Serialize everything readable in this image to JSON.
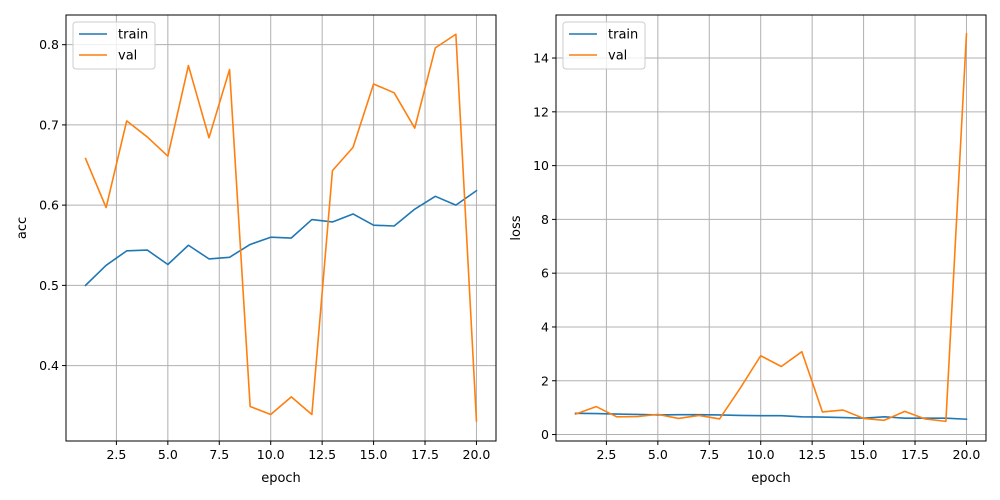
{
  "chart_data": [
    {
      "type": "line",
      "xlabel": "epoch",
      "ylabel": "acc",
      "x": [
        1,
        2,
        3,
        4,
        5,
        6,
        7,
        8,
        9,
        10,
        11,
        12,
        13,
        14,
        15,
        16,
        17,
        18,
        19,
        20
      ],
      "xlim": [
        0.05,
        20.95
      ],
      "ylim": [
        0.306,
        0.837
      ],
      "xticks": [
        2.5,
        5.0,
        7.5,
        10.0,
        12.5,
        15.0,
        17.5,
        20.0
      ],
      "xtick_labels": [
        "2.5",
        "5.0",
        "7.5",
        "10.0",
        "12.5",
        "15.0",
        "17.5",
        "20.0"
      ],
      "yticks": [
        0.4,
        0.5,
        0.6,
        0.7,
        0.8
      ],
      "ytick_labels": [
        "0.4",
        "0.5",
        "0.6",
        "0.7",
        "0.8"
      ],
      "grid": true,
      "legend": "upper left",
      "series": [
        {
          "name": "train",
          "color": "#1f77b4",
          "values": [
            0.5,
            0.525,
            0.543,
            0.544,
            0.526,
            0.55,
            0.533,
            0.535,
            0.551,
            0.56,
            0.559,
            0.582,
            0.579,
            0.589,
            0.575,
            0.574,
            0.595,
            0.611,
            0.6,
            0.618
          ]
        },
        {
          "name": "val",
          "color": "#ff7f0e",
          "values": [
            0.658,
            0.597,
            0.705,
            0.685,
            0.661,
            0.774,
            0.684,
            0.769,
            0.349,
            0.339,
            0.361,
            0.339,
            0.643,
            0.672,
            0.751,
            0.74,
            0.696,
            0.796,
            0.813,
            0.331
          ]
        }
      ]
    },
    {
      "type": "line",
      "xlabel": "epoch",
      "ylabel": "loss",
      "x": [
        1,
        2,
        3,
        4,
        5,
        6,
        7,
        8,
        9,
        10,
        11,
        12,
        13,
        14,
        15,
        16,
        17,
        18,
        19,
        20
      ],
      "xlim": [
        0.05,
        20.95
      ],
      "ylim": [
        -0.24,
        15.6
      ],
      "xticks": [
        2.5,
        5.0,
        7.5,
        10.0,
        12.5,
        15.0,
        17.5,
        20.0
      ],
      "xtick_labels": [
        "2.5",
        "5.0",
        "7.5",
        "10.0",
        "12.5",
        "15.0",
        "17.5",
        "20.0"
      ],
      "yticks": [
        0,
        2,
        4,
        6,
        8,
        10,
        12,
        14
      ],
      "ytick_labels": [
        "0",
        "2",
        "4",
        "6",
        "8",
        "10",
        "12",
        "14"
      ],
      "grid": true,
      "legend": "upper left",
      "series": [
        {
          "name": "train",
          "color": "#1f77b4",
          "values": [
            0.79,
            0.78,
            0.76,
            0.75,
            0.73,
            0.74,
            0.74,
            0.73,
            0.71,
            0.7,
            0.7,
            0.66,
            0.65,
            0.63,
            0.61,
            0.66,
            0.61,
            0.61,
            0.61,
            0.57
          ]
        },
        {
          "name": "val",
          "color": "#ff7f0e",
          "values": [
            0.76,
            1.04,
            0.66,
            0.67,
            0.75,
            0.6,
            0.71,
            0.58,
            1.72,
            2.93,
            2.53,
            3.08,
            0.84,
            0.91,
            0.6,
            0.53,
            0.86,
            0.58,
            0.49,
            14.89
          ]
        }
      ]
    }
  ]
}
